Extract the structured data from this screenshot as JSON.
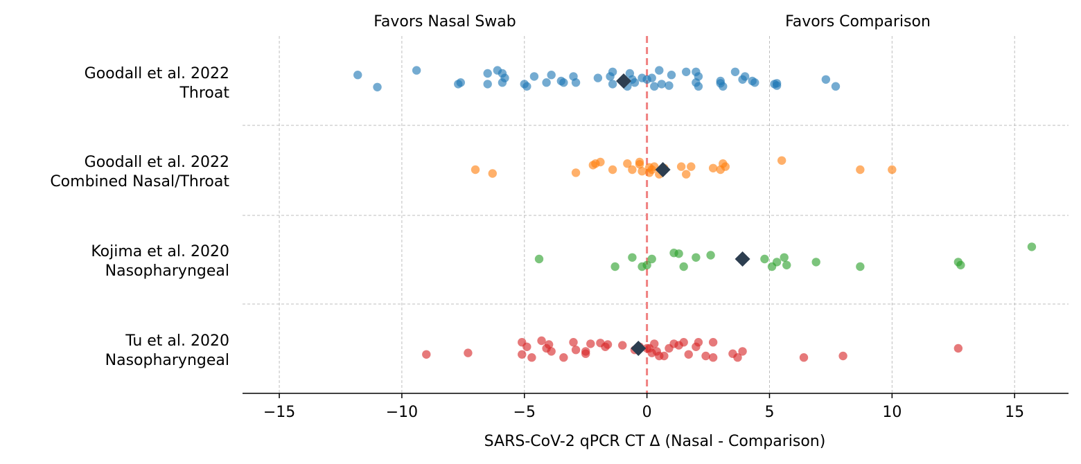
{
  "chart_data": {
    "type": "scatter",
    "title": "",
    "xlabel": "SARS-CoV-2 qPCR CT Δ (Nasal - Comparison)",
    "ylabel": "",
    "xlim": [
      -16.5,
      17.2
    ],
    "xticks": [
      -15,
      -10,
      -5,
      0,
      5,
      10,
      15
    ],
    "xtick_labels": [
      "−15",
      "−10",
      "−5",
      "0",
      "5",
      "10",
      "15"
    ],
    "annotations": {
      "left": "Favors Nasal Swab",
      "right": "Favors Comparison"
    },
    "reference_line": {
      "x": 0,
      "style": "dashed",
      "color": "#f08080"
    },
    "grid": "vertical dashed at x ticks; horizontal dashed between groups",
    "mean_marker": {
      "shape": "diamond",
      "color": "#2d3e50"
    },
    "series": [
      {
        "label_lines": [
          "Goodall et al. 2022",
          "Throat"
        ],
        "color": "#1f77b4",
        "mean": -0.95,
        "points": [
          [
            -11.8,
            0.4
          ],
          [
            -11.0,
            -0.4
          ],
          [
            -9.4,
            0.7
          ],
          [
            -7.7,
            -0.2
          ],
          [
            -7.6,
            -0.1
          ],
          [
            -6.5,
            0.5
          ],
          [
            -6.5,
            -0.2
          ],
          [
            -6.1,
            0.7
          ],
          [
            -5.9,
            -0.1
          ],
          [
            -5.9,
            0.5
          ],
          [
            -5.8,
            0.2
          ],
          [
            -5.0,
            -0.2
          ],
          [
            -4.9,
            -0.35
          ],
          [
            -4.6,
            0.3
          ],
          [
            -4.1,
            -0.1
          ],
          [
            -3.9,
            0.4
          ],
          [
            -3.5,
            0.0
          ],
          [
            -3.4,
            -0.1
          ],
          [
            -3.0,
            0.3
          ],
          [
            -2.9,
            -0.1
          ],
          [
            -2.0,
            0.2
          ],
          [
            -1.5,
            0.3
          ],
          [
            -1.4,
            0.6
          ],
          [
            -1.4,
            -0.2
          ],
          [
            -0.8,
            -0.35
          ],
          [
            -0.7,
            0.5
          ],
          [
            -0.6,
            0.1
          ],
          [
            -0.5,
            -0.1
          ],
          [
            -0.2,
            0.2
          ],
          [
            0.5,
            0.7
          ],
          [
            0.3,
            -0.35
          ],
          [
            0.2,
            0.2
          ],
          [
            0.0,
            0.1
          ],
          [
            0.6,
            -0.2
          ],
          [
            0.9,
            -0.3
          ],
          [
            1.0,
            0.4
          ],
          [
            1.6,
            0.6
          ],
          [
            2.0,
            0.6
          ],
          [
            2.1,
            0.3
          ],
          [
            2.0,
            -0.1
          ],
          [
            2.1,
            -0.35
          ],
          [
            3.0,
            0.0
          ],
          [
            3.0,
            -0.15
          ],
          [
            3.1,
            -0.35
          ],
          [
            3.6,
            0.6
          ],
          [
            3.9,
            0.1
          ],
          [
            4.0,
            0.3
          ],
          [
            4.3,
            0.0
          ],
          [
            4.4,
            -0.1
          ],
          [
            5.2,
            -0.2
          ],
          [
            5.3,
            -0.3
          ],
          [
            5.3,
            -0.15
          ],
          [
            7.3,
            0.1
          ],
          [
            7.7,
            -0.35
          ]
        ]
      },
      {
        "label_lines": [
          "Goodall et al. 2022",
          "Combined Nasal/Throat"
        ],
        "color": "#ff7f0e",
        "mean": 0.65,
        "points": [
          [
            -7.0,
            0.0
          ],
          [
            -6.3,
            -0.25
          ],
          [
            -2.9,
            -0.2
          ],
          [
            -2.2,
            0.3
          ],
          [
            -2.1,
            0.4
          ],
          [
            -1.9,
            0.5
          ],
          [
            -1.4,
            0.0
          ],
          [
            -0.8,
            0.4
          ],
          [
            -0.6,
            0.0
          ],
          [
            -0.3,
            0.5
          ],
          [
            -0.3,
            0.35
          ],
          [
            -0.2,
            -0.1
          ],
          [
            0.1,
            -0.2
          ],
          [
            0.1,
            0.15
          ],
          [
            0.2,
            0.0
          ],
          [
            0.3,
            0.2
          ],
          [
            0.5,
            -0.3
          ],
          [
            0.7,
            0.1
          ],
          [
            1.4,
            0.2
          ],
          [
            1.6,
            -0.3
          ],
          [
            1.8,
            0.2
          ],
          [
            2.7,
            0.1
          ],
          [
            3.0,
            0.0
          ],
          [
            3.1,
            0.4
          ],
          [
            3.2,
            0.2
          ],
          [
            5.5,
            0.6
          ],
          [
            8.7,
            0.0
          ],
          [
            10.0,
            0.0
          ]
        ]
      },
      {
        "label_lines": [
          "Kojima et al. 2020",
          "Nasopharyngeal"
        ],
        "color": "#2ca02c",
        "mean": 3.9,
        "points": [
          [
            -4.4,
            0.0
          ],
          [
            -1.3,
            -0.5
          ],
          [
            -0.6,
            0.1
          ],
          [
            -0.2,
            -0.5
          ],
          [
            0.0,
            -0.4
          ],
          [
            0.2,
            0.0
          ],
          [
            1.1,
            0.4
          ],
          [
            1.3,
            0.35
          ],
          [
            1.5,
            -0.5
          ],
          [
            2.0,
            0.1
          ],
          [
            2.6,
            0.25
          ],
          [
            4.8,
            0.0
          ],
          [
            5.1,
            -0.5
          ],
          [
            5.3,
            -0.2
          ],
          [
            5.6,
            0.1
          ],
          [
            5.7,
            -0.4
          ],
          [
            6.9,
            -0.2
          ],
          [
            8.7,
            -0.5
          ],
          [
            12.7,
            -0.2
          ],
          [
            12.8,
            -0.4
          ],
          [
            15.7,
            0.8
          ]
        ]
      },
      {
        "label_lines": [
          "Tu et al. 2020",
          "Nasopharyngeal"
        ],
        "color": "#d62728",
        "mean": -0.35,
        "points": [
          [
            -9.0,
            -0.4
          ],
          [
            -7.3,
            -0.3
          ],
          [
            -5.1,
            0.4
          ],
          [
            -5.1,
            -0.4
          ],
          [
            -4.9,
            0.1
          ],
          [
            -4.7,
            -0.6
          ],
          [
            -4.3,
            0.5
          ],
          [
            -4.1,
            0.0
          ],
          [
            -4.0,
            0.25
          ],
          [
            -3.9,
            -0.2
          ],
          [
            -3.4,
            -0.6
          ],
          [
            -3.0,
            0.4
          ],
          [
            -2.9,
            -0.1
          ],
          [
            -2.5,
            -0.2
          ],
          [
            -2.5,
            -0.35
          ],
          [
            -2.3,
            0.3
          ],
          [
            -1.9,
            0.35
          ],
          [
            -1.7,
            0.1
          ],
          [
            -1.6,
            0.25
          ],
          [
            -1.0,
            0.2
          ],
          [
            -0.5,
            -0.1
          ],
          [
            -0.3,
            0.1
          ],
          [
            0.0,
            0.0
          ],
          [
            0.1,
            0.0
          ],
          [
            0.2,
            -0.3
          ],
          [
            0.3,
            0.3
          ],
          [
            0.4,
            -0.2
          ],
          [
            0.5,
            -0.5
          ],
          [
            0.7,
            -0.5
          ],
          [
            0.9,
            0.0
          ],
          [
            1.1,
            0.3
          ],
          [
            1.3,
            0.2
          ],
          [
            1.5,
            0.4
          ],
          [
            1.7,
            -0.4
          ],
          [
            2.0,
            0.1
          ],
          [
            2.1,
            0.4
          ],
          [
            2.4,
            -0.5
          ],
          [
            2.7,
            -0.6
          ],
          [
            2.7,
            0.4
          ],
          [
            3.5,
            -0.35
          ],
          [
            3.7,
            -0.6
          ],
          [
            3.9,
            -0.2
          ],
          [
            6.4,
            -0.6
          ],
          [
            8.0,
            -0.5
          ],
          [
            12.7,
            0.0
          ]
        ]
      }
    ]
  }
}
